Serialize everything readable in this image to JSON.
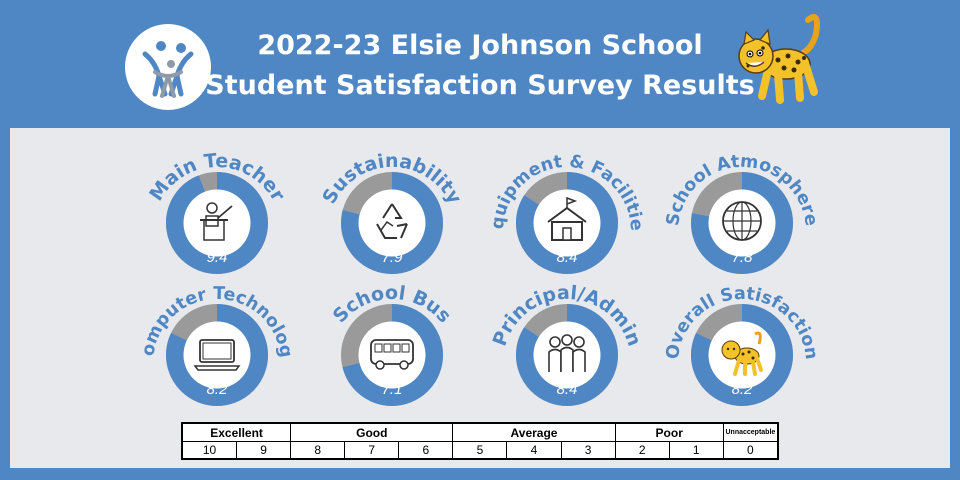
{
  "header": {
    "title_line1": "2022-23 Elsie Johnson School",
    "title_line2": "Student Satisfaction Survey Results",
    "logo_icon": "people-logo-icon",
    "mascot_icon": "leopard-mascot-icon"
  },
  "colors": {
    "accent": "#4f87c5",
    "remainder": "#9a9a9a",
    "panel": "#e8e9ec"
  },
  "chart_data": {
    "type": "pie",
    "max": 10,
    "series": [
      {
        "name": "Main Teacher",
        "value": 9.4,
        "value_label": "9.4",
        "icon": "teacher-icon"
      },
      {
        "name": "Sustainability",
        "value": 7.9,
        "value_label": "7.9",
        "icon": "recycle-icon"
      },
      {
        "name": "Equipment & Facilities",
        "value": 8.4,
        "value_label": "8.4",
        "icon": "school-building-icon"
      },
      {
        "name": "School Atmosphere",
        "value": 7.8,
        "value_label": "7.8",
        "icon": "globe-icon"
      },
      {
        "name": "Computer Technology",
        "value": 8.2,
        "value_label": "8.2",
        "icon": "laptop-icon"
      },
      {
        "name": "School Bus",
        "value": 7.1,
        "value_label": "7.1",
        "icon": "bus-icon"
      },
      {
        "name": "Principal/Admin",
        "value": 8.4,
        "value_label": "8.4",
        "icon": "people-group-icon"
      },
      {
        "name": "Overall Satisfaction",
        "value": 8.2,
        "value_label": "8.2",
        "icon": "leopard-icon"
      }
    ]
  },
  "scale": {
    "categories": [
      {
        "label": "Excellent",
        "span": 2
      },
      {
        "label": "Good",
        "span": 3
      },
      {
        "label": "Average",
        "span": 3
      },
      {
        "label": "Poor",
        "span": 2
      },
      {
        "label": "Unnacceptable",
        "span": 1
      }
    ],
    "values": [
      "10",
      "9",
      "8",
      "7",
      "6",
      "5",
      "4",
      "3",
      "2",
      "1",
      "0"
    ]
  }
}
